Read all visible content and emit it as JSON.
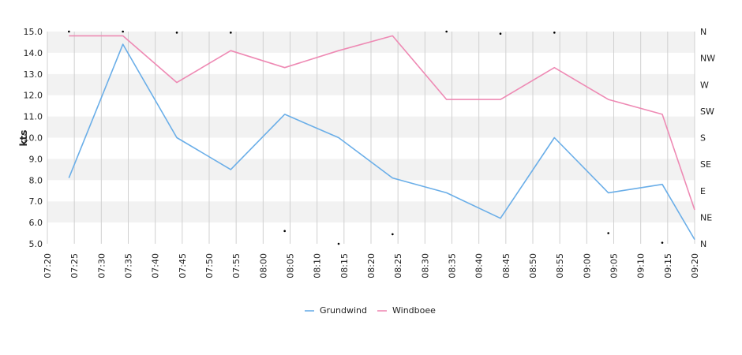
{
  "chart_data": {
    "type": "line",
    "ylabel": "kts",
    "ylim": [
      5.0,
      15.0
    ],
    "y_ticks": [
      "5.0",
      "6.0",
      "7.0",
      "8.0",
      "9.0",
      "10.0",
      "11.0",
      "12.0",
      "13.0",
      "14.0",
      "15.0"
    ],
    "x_ticks": [
      "07:20",
      "07:25",
      "07:30",
      "07:35",
      "07:40",
      "07:45",
      "07:50",
      "07:55",
      "08:00",
      "08:05",
      "08:10",
      "08:15",
      "08:20",
      "08:25",
      "08:30",
      "08:35",
      "08:40",
      "08:45",
      "08:50",
      "08:55",
      "09:00",
      "09:05",
      "09:10",
      "09:15",
      "09:20"
    ],
    "x_start": "07:20",
    "x_end": "09:20",
    "right_axis_labels": [
      "N",
      "NE",
      "E",
      "SE",
      "S",
      "SW",
      "W",
      "NW",
      "N"
    ],
    "grid": true,
    "legend_position": "bottom",
    "series": [
      {
        "name": "Grundwind",
        "color": "#6aaee8",
        "x": [
          "07:24",
          "07:34",
          "07:44",
          "07:54",
          "08:04",
          "08:14",
          "08:24",
          "08:34",
          "08:44",
          "08:54",
          "09:04",
          "09:14",
          "09:20"
        ],
        "values": [
          8.1,
          14.4,
          10.0,
          8.5,
          11.1,
          10.0,
          8.1,
          7.4,
          6.2,
          10.0,
          7.4,
          7.8,
          5.2
        ]
      },
      {
        "name": "Windboee",
        "color": "#ee8ab4",
        "x": [
          "07:24",
          "07:34",
          "07:44",
          "07:54",
          "08:04",
          "08:14",
          "08:24",
          "08:34",
          "08:44",
          "08:54",
          "09:04",
          "09:14",
          "09:20"
        ],
        "values": [
          14.8,
          14.8,
          12.6,
          14.1,
          13.3,
          14.1,
          14.8,
          11.8,
          11.8,
          13.3,
          11.8,
          11.1,
          6.6
        ]
      }
    ],
    "direction_markers": {
      "x": [
        "07:24",
        "07:34",
        "07:44",
        "07:54",
        "08:04",
        "08:14",
        "08:24",
        "08:34",
        "08:44",
        "08:54",
        "09:04",
        "09:14"
      ],
      "values": [
        15.0,
        15.0,
        14.95,
        14.95,
        5.6,
        5.0,
        5.45,
        15.0,
        14.9,
        14.95,
        5.5,
        5.05
      ]
    }
  }
}
